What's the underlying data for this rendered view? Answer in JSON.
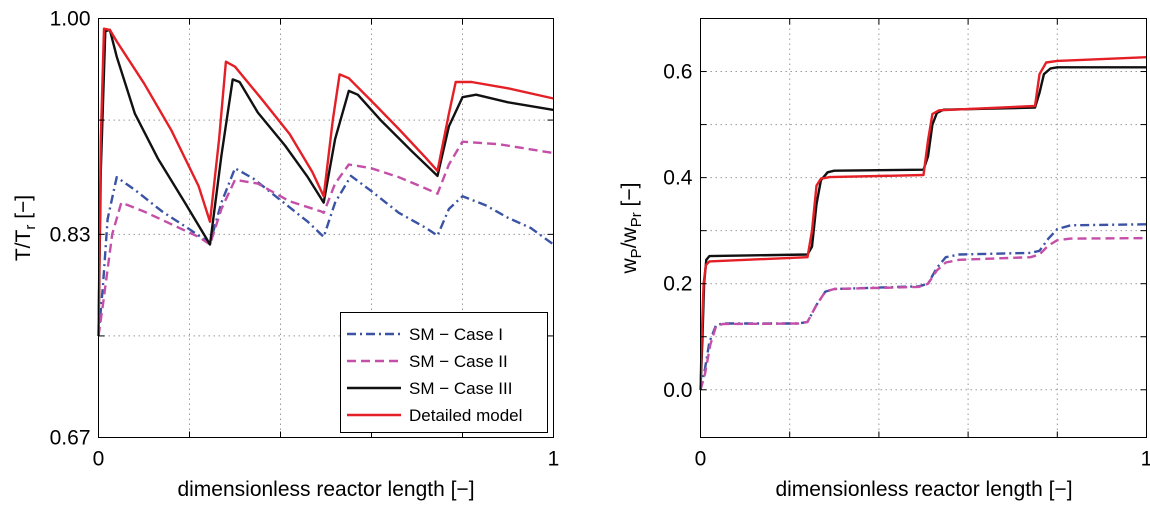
{
  "chart_data": [
    {
      "type": "line",
      "xlabel": "dimensionless reactor length [−]",
      "ylabel": {
        "main": "T/T",
        "sub": "r",
        "unit": "  [−]"
      },
      "xlim": [
        0,
        1
      ],
      "ylim": [
        0.67,
        1.0
      ],
      "xticks": [
        {
          "v": 0,
          "label": "0"
        },
        {
          "v": 1,
          "label": "1"
        }
      ],
      "yticks": [
        {
          "v": 0.67,
          "label": "0.67"
        },
        {
          "v": 0.83,
          "label": "0.83"
        },
        {
          "v": 1.0,
          "label": "1.00"
        }
      ],
      "xgrid": [
        0.2,
        0.4,
        0.6,
        0.8
      ],
      "ygrid": [
        0.75,
        0.92
      ],
      "grid": true,
      "legend_position": "bottom-right",
      "series": [
        {
          "name": "SM − Case I",
          "color": "#3a53a4",
          "dash": "dashdot",
          "points": [
            [
              0,
              0.75
            ],
            [
              0.01,
              0.79
            ],
            [
              0.02,
              0.842
            ],
            [
              0.04,
              0.875
            ],
            [
              0.08,
              0.865
            ],
            [
              0.14,
              0.848
            ],
            [
              0.2,
              0.834
            ],
            [
              0.245,
              0.823
            ],
            [
              0.27,
              0.855
            ],
            [
              0.3,
              0.882
            ],
            [
              0.34,
              0.874
            ],
            [
              0.4,
              0.857
            ],
            [
              0.46,
              0.84
            ],
            [
              0.495,
              0.828
            ],
            [
              0.52,
              0.855
            ],
            [
              0.555,
              0.876
            ],
            [
              0.6,
              0.864
            ],
            [
              0.66,
              0.847
            ],
            [
              0.72,
              0.835
            ],
            [
              0.745,
              0.829
            ],
            [
              0.77,
              0.85
            ],
            [
              0.8,
              0.86
            ],
            [
              0.85,
              0.853
            ],
            [
              0.9,
              0.843
            ],
            [
              0.95,
              0.835
            ],
            [
              1.0,
              0.822
            ]
          ]
        },
        {
          "name": "SM − Case II",
          "color": "#c44fa8",
          "dash": "dash",
          "points": [
            [
              0,
              0.75
            ],
            [
              0.01,
              0.775
            ],
            [
              0.03,
              0.83
            ],
            [
              0.05,
              0.855
            ],
            [
              0.1,
              0.848
            ],
            [
              0.16,
              0.838
            ],
            [
              0.22,
              0.828
            ],
            [
              0.245,
              0.822
            ],
            [
              0.27,
              0.85
            ],
            [
              0.3,
              0.873
            ],
            [
              0.35,
              0.87
            ],
            [
              0.42,
              0.856
            ],
            [
              0.49,
              0.848
            ],
            [
              0.495,
              0.847
            ],
            [
              0.52,
              0.87
            ],
            [
              0.55,
              0.885
            ],
            [
              0.6,
              0.882
            ],
            [
              0.66,
              0.875
            ],
            [
              0.72,
              0.866
            ],
            [
              0.745,
              0.862
            ],
            [
              0.77,
              0.885
            ],
            [
              0.8,
              0.903
            ],
            [
              0.88,
              0.901
            ],
            [
              1.0,
              0.894
            ]
          ]
        },
        {
          "name": "SM − Case III",
          "color": "#111111",
          "dash": "solid",
          "points": [
            [
              0,
              0.75
            ],
            [
              0.005,
              0.88
            ],
            [
              0.015,
              0.99
            ],
            [
              0.025,
              0.991
            ],
            [
              0.04,
              0.97
            ],
            [
              0.08,
              0.925
            ],
            [
              0.13,
              0.89
            ],
            [
              0.19,
              0.855
            ],
            [
              0.245,
              0.822
            ],
            [
              0.27,
              0.892
            ],
            [
              0.295,
              0.952
            ],
            [
              0.31,
              0.95
            ],
            [
              0.35,
              0.926
            ],
            [
              0.41,
              0.9
            ],
            [
              0.46,
              0.875
            ],
            [
              0.495,
              0.855
            ],
            [
              0.52,
              0.905
            ],
            [
              0.55,
              0.943
            ],
            [
              0.57,
              0.94
            ],
            [
              0.62,
              0.92
            ],
            [
              0.69,
              0.895
            ],
            [
              0.745,
              0.876
            ],
            [
              0.77,
              0.915
            ],
            [
              0.8,
              0.938
            ],
            [
              0.83,
              0.94
            ],
            [
              0.9,
              0.934
            ],
            [
              1.0,
              0.928
            ]
          ]
        },
        {
          "name": "Detailed model",
          "color": "#e41f26",
          "dash": "solid",
          "points": [
            [
              0,
              0.75
            ],
            [
              0.005,
              0.905
            ],
            [
              0.012,
              0.992
            ],
            [
              0.025,
              0.991
            ],
            [
              0.04,
              0.982
            ],
            [
              0.1,
              0.949
            ],
            [
              0.16,
              0.912
            ],
            [
              0.22,
              0.868
            ],
            [
              0.245,
              0.84
            ],
            [
              0.265,
              0.905
            ],
            [
              0.28,
              0.966
            ],
            [
              0.3,
              0.962
            ],
            [
              0.36,
              0.936
            ],
            [
              0.42,
              0.909
            ],
            [
              0.47,
              0.879
            ],
            [
              0.495,
              0.86
            ],
            [
              0.515,
              0.92
            ],
            [
              0.53,
              0.956
            ],
            [
              0.55,
              0.953
            ],
            [
              0.6,
              0.935
            ],
            [
              0.66,
              0.913
            ],
            [
              0.72,
              0.89
            ],
            [
              0.745,
              0.88
            ],
            [
              0.77,
              0.925
            ],
            [
              0.785,
              0.95
            ],
            [
              0.82,
              0.95
            ],
            [
              0.9,
              0.945
            ],
            [
              1.0,
              0.937
            ]
          ]
        }
      ]
    },
    {
      "type": "line",
      "xlabel": "dimensionless reactor length [−]",
      "ylabel": {
        "main": "w",
        "sub1": "P",
        "mid": "/w",
        "sub2": "Pr",
        "unit": " [−]"
      },
      "xlim": [
        0,
        1
      ],
      "ylim": [
        -0.09,
        0.7
      ],
      "xticks": [
        {
          "v": 0,
          "label": "0"
        },
        {
          "v": 1,
          "label": "1"
        }
      ],
      "yticks": [
        {
          "v": 0.0,
          "label": "0.0"
        },
        {
          "v": 0.2,
          "label": "0.2"
        },
        {
          "v": 0.4,
          "label": "0.4"
        },
        {
          "v": 0.6,
          "label": "0.6"
        }
      ],
      "xgrid": [
        0.2,
        0.4,
        0.6,
        0.8
      ],
      "ygrid": [
        0.1,
        0.3,
        0.5
      ],
      "grid": true,
      "series": [
        {
          "name": "SM − Case I",
          "color": "#3a53a4",
          "dash": "dashdot",
          "points": [
            [
              0,
              0.0
            ],
            [
              0.01,
              0.04
            ],
            [
              0.02,
              0.09
            ],
            [
              0.035,
              0.122
            ],
            [
              0.05,
              0.125
            ],
            [
              0.22,
              0.125
            ],
            [
              0.24,
              0.128
            ],
            [
              0.26,
              0.16
            ],
            [
              0.28,
              0.185
            ],
            [
              0.3,
              0.19
            ],
            [
              0.49,
              0.195
            ],
            [
              0.51,
              0.2
            ],
            [
              0.53,
              0.23
            ],
            [
              0.55,
              0.25
            ],
            [
              0.58,
              0.255
            ],
            [
              0.74,
              0.258
            ],
            [
              0.76,
              0.262
            ],
            [
              0.78,
              0.285
            ],
            [
              0.8,
              0.303
            ],
            [
              0.83,
              0.31
            ],
            [
              1.0,
              0.312
            ]
          ]
        },
        {
          "name": "SM − Case II",
          "color": "#c44fa8",
          "dash": "dash",
          "points": [
            [
              0,
              0.0
            ],
            [
              0.01,
              0.03
            ],
            [
              0.022,
              0.085
            ],
            [
              0.035,
              0.12
            ],
            [
              0.05,
              0.124
            ],
            [
              0.22,
              0.125
            ],
            [
              0.24,
              0.128
            ],
            [
              0.26,
              0.16
            ],
            [
              0.28,
              0.185
            ],
            [
              0.3,
              0.19
            ],
            [
              0.49,
              0.194
            ],
            [
              0.51,
              0.2
            ],
            [
              0.53,
              0.225
            ],
            [
              0.55,
              0.24
            ],
            [
              0.58,
              0.245
            ],
            [
              0.74,
              0.25
            ],
            [
              0.76,
              0.255
            ],
            [
              0.78,
              0.272
            ],
            [
              0.8,
              0.282
            ],
            [
              0.83,
              0.285
            ],
            [
              1.0,
              0.286
            ]
          ]
        },
        {
          "name": "SM − Case III",
          "color": "#111111",
          "dash": "solid",
          "points": [
            [
              0,
              0.0
            ],
            [
              0.004,
              0.09
            ],
            [
              0.008,
              0.2
            ],
            [
              0.013,
              0.245
            ],
            [
              0.02,
              0.252
            ],
            [
              0.24,
              0.255
            ],
            [
              0.25,
              0.27
            ],
            [
              0.26,
              0.35
            ],
            [
              0.27,
              0.395
            ],
            [
              0.285,
              0.41
            ],
            [
              0.3,
              0.413
            ],
            [
              0.5,
              0.415
            ],
            [
              0.51,
              0.44
            ],
            [
              0.52,
              0.5
            ],
            [
              0.53,
              0.522
            ],
            [
              0.545,
              0.528
            ],
            [
              0.75,
              0.532
            ],
            [
              0.76,
              0.56
            ],
            [
              0.77,
              0.595
            ],
            [
              0.785,
              0.606
            ],
            [
              0.8,
              0.608
            ],
            [
              1.0,
              0.608
            ]
          ]
        },
        {
          "name": "Detailed model",
          "color": "#e41f26",
          "dash": "solid",
          "points": [
            [
              0,
              0.0
            ],
            [
              0.003,
              0.1
            ],
            [
              0.007,
              0.2
            ],
            [
              0.012,
              0.235
            ],
            [
              0.02,
              0.242
            ],
            [
              0.24,
              0.25
            ],
            [
              0.25,
              0.3
            ],
            [
              0.26,
              0.385
            ],
            [
              0.27,
              0.398
            ],
            [
              0.29,
              0.401
            ],
            [
              0.5,
              0.405
            ],
            [
              0.51,
              0.47
            ],
            [
              0.52,
              0.52
            ],
            [
              0.535,
              0.527
            ],
            [
              0.75,
              0.535
            ],
            [
              0.76,
              0.595
            ],
            [
              0.775,
              0.617
            ],
            [
              0.8,
              0.62
            ],
            [
              1.0,
              0.627
            ]
          ]
        }
      ]
    }
  ]
}
